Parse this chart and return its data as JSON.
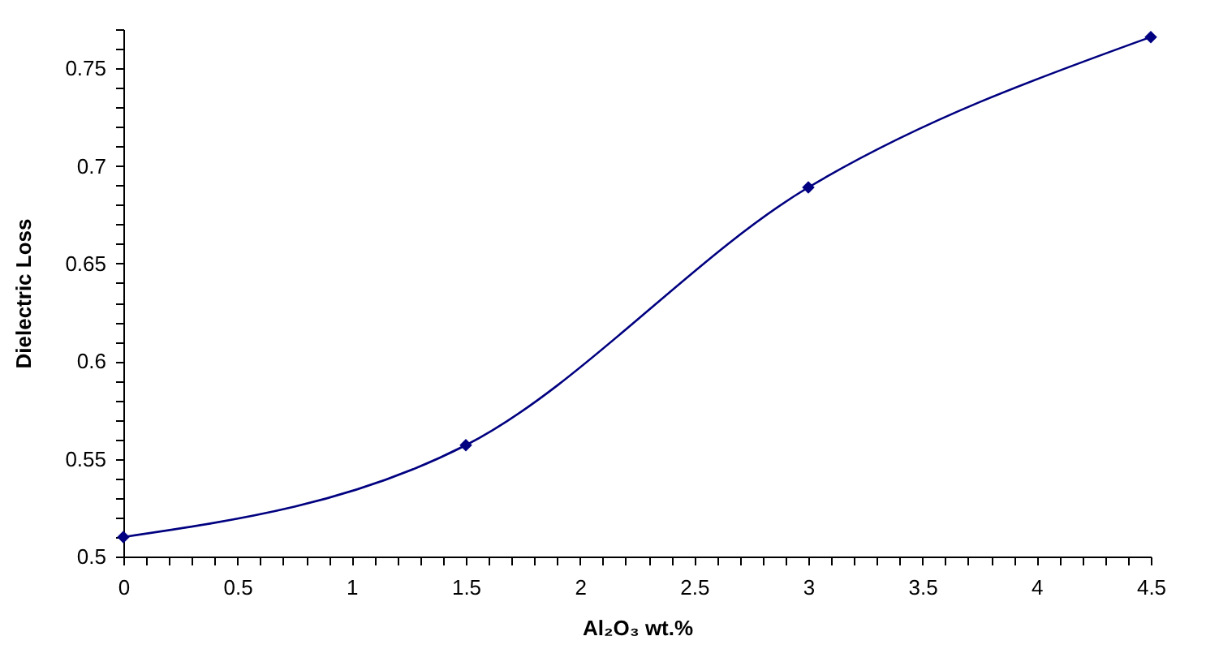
{
  "chart_data": {
    "type": "line",
    "xlabel": "Al₂O₃ wt.%",
    "ylabel": "Dielectric Loss",
    "x": [
      0,
      1.5,
      3,
      4.5
    ],
    "series": [
      {
        "color": "#000080",
        "values": [
          0.51,
          0.557,
          0.689,
          0.766
        ]
      }
    ],
    "xlim": [
      0,
      4.5
    ],
    "xticks": [
      0,
      {
        "value": 0.1,
        "label": null
      },
      {
        "value": 0.2,
        "label": null
      },
      {
        "value": 0.3,
        "label": null
      },
      {
        "value": 0.4,
        "label": null
      },
      0.5,
      {
        "value": 0.6,
        "label": null
      },
      {
        "value": 0.7,
        "label": null
      },
      {
        "value": 0.8,
        "label": null
      },
      {
        "value": 0.9,
        "label": null
      },
      1,
      {
        "value": 1.1,
        "label": null
      },
      {
        "value": 1.2,
        "label": null
      },
      {
        "value": 1.3,
        "label": null
      },
      {
        "value": 1.4,
        "label": null
      },
      1.5,
      {
        "value": 1.6,
        "label": null
      },
      {
        "value": 1.7,
        "label": null
      },
      {
        "value": 1.8,
        "label": null
      },
      {
        "value": 1.9,
        "label": null
      },
      2,
      {
        "value": 2.1,
        "label": null
      },
      {
        "value": 2.2,
        "label": null
      },
      {
        "value": 2.3,
        "label": null
      },
      {
        "value": 2.4,
        "label": null
      },
      2.5,
      {
        "value": 2.6,
        "label": null
      },
      {
        "value": 2.7,
        "label": null
      },
      {
        "value": 2.8,
        "label": null
      },
      {
        "value": 2.9,
        "label": null
      },
      3,
      {
        "value": 3.1,
        "label": null
      },
      {
        "value": 3.2,
        "label": null
      },
      {
        "value": 3.3,
        "label": null
      },
      {
        "value": 3.4,
        "label": null
      },
      3.5,
      {
        "value": 3.6,
        "label": null
      },
      {
        "value": 3.7,
        "label": null
      },
      {
        "value": 3.8,
        "label": null
      },
      {
        "value": 3.9,
        "label": null
      },
      4,
      {
        "value": 4.1,
        "label": null
      },
      {
        "value": 4.2,
        "label": null
      },
      {
        "value": 4.3,
        "label": null
      },
      {
        "value": 4.4,
        "label": null
      },
      4.5
    ],
    "ylim": [
      0.5,
      0.77
    ],
    "yticks": [
      0.5,
      {
        "value": 0.51,
        "label": null
      },
      {
        "value": 0.52,
        "label": null
      },
      {
        "value": 0.53,
        "label": null
      },
      {
        "value": 0.54,
        "label": null
      },
      0.55,
      {
        "value": 0.56,
        "label": null
      },
      {
        "value": 0.57,
        "label": null
      },
      {
        "value": 0.58,
        "label": null
      },
      {
        "value": 0.59,
        "label": null
      },
      0.6,
      {
        "value": 0.61,
        "label": null
      },
      {
        "value": 0.62,
        "label": null
      },
      {
        "value": 0.63,
        "label": null
      },
      {
        "value": 0.64,
        "label": null
      },
      0.65,
      {
        "value": 0.66,
        "label": null
      },
      {
        "value": 0.67,
        "label": null
      },
      {
        "value": 0.68,
        "label": null
      },
      {
        "value": 0.69,
        "label": null
      },
      0.7,
      {
        "value": 0.71,
        "label": null
      },
      {
        "value": 0.72,
        "label": null
      },
      {
        "value": 0.73,
        "label": null
      },
      {
        "value": 0.74,
        "label": null
      },
      0.75,
      {
        "value": 0.76,
        "label": null
      },
      {
        "value": 0.77,
        "label": null
      }
    ],
    "grid": false,
    "marker": "diamond",
    "line_style": "solid"
  }
}
